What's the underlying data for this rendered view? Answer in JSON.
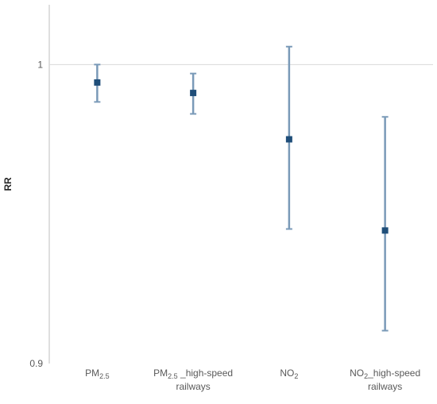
{
  "chart_data": {
    "type": "scatter",
    "subtype": "error-bar",
    "title": "",
    "xlabel": "",
    "ylabel": "RR",
    "ylim": [
      0.9,
      1.02
    ],
    "yticks": [
      {
        "value": 0.9,
        "label": "0.9"
      },
      {
        "value": 1.0,
        "label": "1"
      }
    ],
    "reference_line": 1.0,
    "grid": false,
    "categories": [
      {
        "base": "PM",
        "sub": "2.5",
        "suffix": "",
        "line2": ""
      },
      {
        "base": "PM",
        "sub": "2.5",
        "suffix": " _high-speed",
        "line2": "railways"
      },
      {
        "base": "NO",
        "sub": "2",
        "suffix": "",
        "line2": ""
      },
      {
        "base": "NO",
        "sub": "2",
        "suffix": "_high-speed",
        "line2": "railways"
      }
    ],
    "values": [
      0.994,
      0.9905,
      0.975,
      0.9445
    ],
    "lower": [
      0.9875,
      0.9835,
      0.945,
      0.911
    ],
    "upper": [
      1.0,
      0.997,
      1.006,
      0.9825
    ],
    "colors": {
      "marker": "#1F4E79",
      "errorbar": "#7A9AB8",
      "axis": "#BFBFBF",
      "refline": "#D9D9D9"
    }
  }
}
